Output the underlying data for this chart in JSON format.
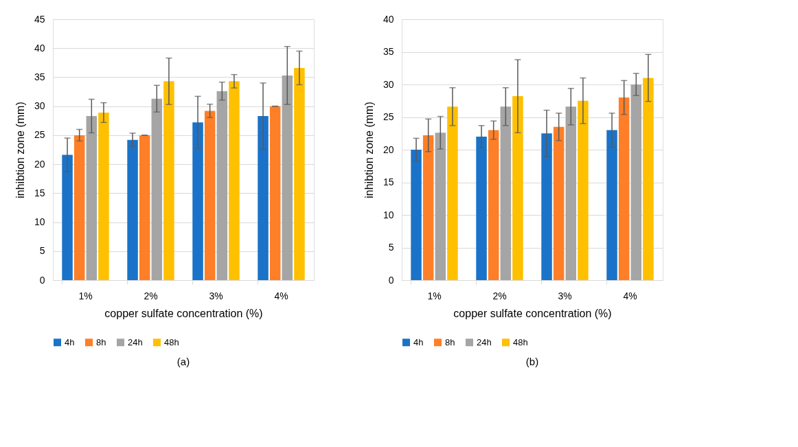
{
  "chart_data": [
    {
      "type": "bar",
      "categories": [
        "1%",
        "2%",
        "3%",
        "4%"
      ],
      "xlabel": "copper sulfate concentration (%)",
      "ylabel": "inhibtion zone (mm)",
      "ylim": [
        0,
        45
      ],
      "yticks": [
        0,
        5,
        10,
        15,
        20,
        25,
        30,
        35,
        40,
        45
      ],
      "grid": "y",
      "legend": "bottom",
      "annotations": [
        "(a)"
      ],
      "series": [
        {
          "name": "4h",
          "color": "#1a73c8",
          "values": [
            21.6,
            24.2,
            27.2,
            28.3
          ],
          "errors": [
            2.9,
            1.15,
            4.5,
            5.7
          ]
        },
        {
          "name": "8h",
          "color": "#fe7f27",
          "values": [
            25.0,
            25.0,
            29.2,
            30.0
          ],
          "errors": [
            1.0,
            0,
            1.15,
            0
          ]
        },
        {
          "name": "24h",
          "color": "#a5a5a5",
          "values": [
            28.3,
            31.3,
            32.6,
            35.3
          ],
          "errors": [
            2.9,
            2.3,
            1.55,
            5.0
          ]
        },
        {
          "name": "48h",
          "color": "#ffc000",
          "values": [
            28.9,
            34.3,
            34.3,
            36.6
          ],
          "errors": [
            1.7,
            4.0,
            1.15,
            2.9
          ]
        }
      ]
    },
    {
      "type": "bar",
      "categories": [
        "1%",
        "2%",
        "3%",
        "4%"
      ],
      "xlabel": "copper sulfate concentration (%)",
      "ylabel": "inhibtion zone (mm)",
      "ylim": [
        0,
        40
      ],
      "yticks": [
        0,
        5,
        10,
        15,
        20,
        25,
        30,
        35,
        40
      ],
      "grid": "y",
      "legend": "bottom",
      "annotations": [
        "(b)"
      ],
      "series": [
        {
          "name": "4h",
          "color": "#1a73c8",
          "values": [
            20.0,
            22.0,
            22.5,
            23.0
          ],
          "errors": [
            1.75,
            1.7,
            3.55,
            2.6
          ]
        },
        {
          "name": "8h",
          "color": "#fe7f27",
          "values": [
            22.2,
            23.0,
            23.5,
            28.0
          ],
          "errors": [
            2.5,
            1.4,
            2.1,
            2.6
          ]
        },
        {
          "name": "24h",
          "color": "#a5a5a5",
          "values": [
            22.6,
            26.6,
            26.6,
            30.0
          ],
          "errors": [
            2.5,
            2.9,
            2.8,
            1.7
          ]
        },
        {
          "name": "48h",
          "color": "#ffc000",
          "values": [
            26.6,
            28.2,
            27.5,
            31.0
          ],
          "errors": [
            2.9,
            5.6,
            3.5,
            3.6
          ]
        }
      ]
    }
  ]
}
